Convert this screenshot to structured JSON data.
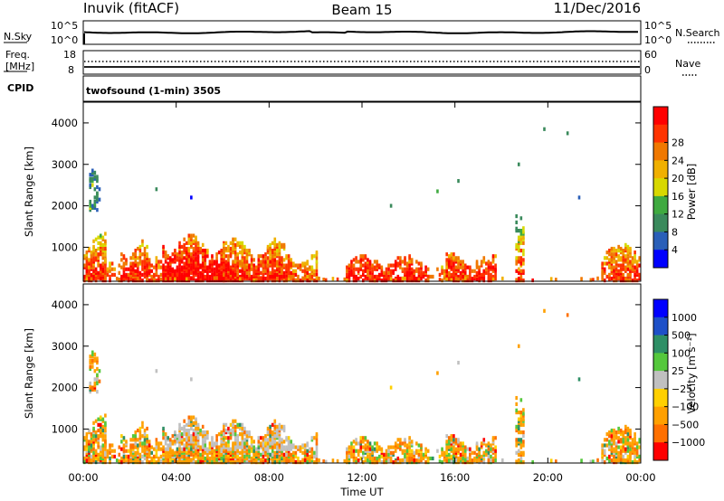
{
  "header": {
    "station": "Inuvik (fitACF)",
    "beam": "Beam 15",
    "date": "11/Dec/2016"
  },
  "top_panels": {
    "nsky_label": "N.Sky",
    "nsky_ticks": [
      "10^5",
      "10^0"
    ],
    "nsearch_label": "N.Search",
    "freq_label_1": "Freq.",
    "freq_label_2": "[MHz]",
    "freq_ticks": [
      "18",
      "8"
    ],
    "nave_label": "Nave",
    "nave_ticks": [
      "60",
      "0"
    ],
    "cpid_label": "CPID",
    "cpid_text": "twofsound (1-min) 3505"
  },
  "chart_data": [
    {
      "type": "heatmap",
      "panel": "power",
      "ylabel": "Slant Range [km]",
      "xlabel": "",
      "yticks": [
        "1000",
        "2000",
        "3000",
        "4000"
      ],
      "ylim": [
        180,
        4500
      ],
      "colorbar_label": "Power [dB]",
      "colorbar_ticks": [
        "4",
        "8",
        "12",
        "16",
        "20",
        "24",
        "28"
      ],
      "colorbar_colors": [
        "#0000ff",
        "#2a5fb8",
        "#3a8a5c",
        "#3faa40",
        "#d8d800",
        "#f0b000",
        "#f07800",
        "#ff3300",
        "#ff0000"
      ]
    },
    {
      "type": "heatmap",
      "panel": "velocity",
      "ylabel": "Slant Range [km]",
      "xlabel": "Time UT",
      "yticks": [
        "1000",
        "2000",
        "3000",
        "4000"
      ],
      "ylim": [
        180,
        4500
      ],
      "xticks": [
        "00:00",
        "04:00",
        "08:00",
        "12:00",
        "16:00",
        "20:00",
        "00:00"
      ],
      "colorbar_label": "Velocity [m s⁻¹]",
      "colorbar_ticks": [
        "1000",
        "500",
        "100",
        "25",
        "−25",
        "−100",
        "−500",
        "−1000"
      ],
      "colorbar_colors": [
        "#0000ff",
        "#1e50c8",
        "#2e8f66",
        "#55c83c",
        "#c0c0c0",
        "#ffd000",
        "#ffa000",
        "#ff7000",
        "#ff0000"
      ]
    }
  ]
}
